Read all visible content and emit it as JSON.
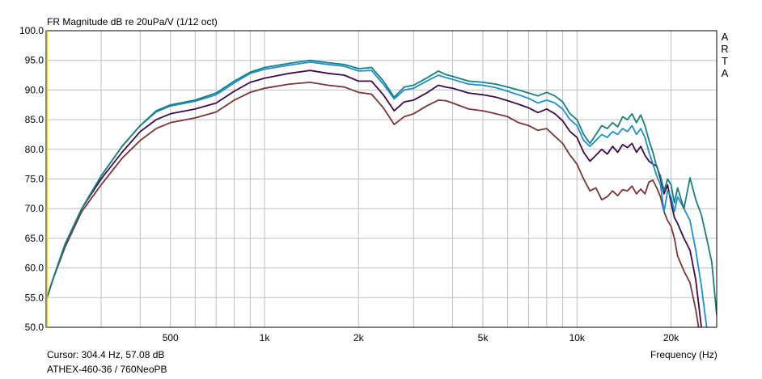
{
  "chart_data": {
    "type": "line",
    "title": "FR Magnitude dB re 20uPa/V (1/12 oct)",
    "xlabel": "Frequency (Hz)",
    "ylabel": "",
    "xscale": "log",
    "xlim": [
      200,
      28000
    ],
    "ylim": [
      50,
      100
    ],
    "grid": true,
    "y_ticks": [
      "100.0",
      "95.0",
      "90.0",
      "85.0",
      "80.0",
      "75.0",
      "70.0",
      "65.0",
      "60.0",
      "55.0",
      "50.0"
    ],
    "x_ticks": [
      {
        "value": 500,
        "label": "500"
      },
      {
        "value": 1000,
        "label": "1k"
      },
      {
        "value": 2000,
        "label": "2k"
      },
      {
        "value": 5000,
        "label": "5k"
      },
      {
        "value": 10000,
        "label": "10k"
      },
      {
        "value": 20000,
        "label": "20k"
      }
    ],
    "series": [
      {
        "color": "#1a7f7a",
        "x": [
          200,
          210,
          230,
          260,
          300,
          350,
          400,
          450,
          500,
          600,
          700,
          800,
          900,
          1000,
          1200,
          1400,
          1600,
          1800,
          2000,
          2200,
          2400,
          2600,
          2800,
          3000,
          3300,
          3600,
          3800,
          4000,
          4500,
          5000,
          5500,
          6000,
          6500,
          7000,
          7500,
          8000,
          8500,
          9000,
          9500,
          10000,
          10500,
          11000,
          11500,
          12000,
          12500,
          13000,
          13500,
          14000,
          14500,
          15000,
          15500,
          16000,
          16500,
          17000,
          17500,
          18000,
          18500,
          19000,
          19500,
          20000,
          20500,
          21000,
          22000,
          23000,
          24000,
          25000,
          26000,
          27000,
          28000
        ],
        "y": [
          54.5,
          58,
          64,
          70,
          75.5,
          80.5,
          84,
          86.5,
          87.5,
          88.3,
          89.5,
          91.5,
          93,
          93.8,
          94.5,
          95,
          94.6,
          94.3,
          93.6,
          93.8,
          91.5,
          88.8,
          90.5,
          90.8,
          92,
          93.2,
          92.6,
          92.3,
          91.5,
          91.3,
          91,
          90.5,
          90,
          89.5,
          89,
          89.6,
          89,
          88,
          86,
          85,
          82.5,
          81,
          82.5,
          84,
          83.5,
          84.5,
          83.8,
          85.5,
          85,
          86,
          84.5,
          85.8,
          84,
          81.5,
          79.5,
          77,
          75.5,
          73,
          75,
          74,
          71,
          73.5,
          70,
          75.2,
          71.5,
          69,
          65,
          61,
          52
        ]
      },
      {
        "color": "#1b8fd6",
        "x": [
          200,
          210,
          230,
          260,
          300,
          350,
          400,
          450,
          500,
          600,
          700,
          800,
          900,
          1000,
          1200,
          1400,
          1600,
          1800,
          2000,
          2200,
          2400,
          2600,
          2800,
          3000,
          3300,
          3600,
          3800,
          4000,
          4500,
          5000,
          5500,
          6000,
          6500,
          7000,
          7500,
          8000,
          8500,
          9000,
          9500,
          10000,
          10500,
          11000,
          11500,
          12000,
          12500,
          13000,
          13500,
          14000,
          14500,
          15000,
          15500,
          16000,
          16500,
          17000,
          17500,
          18000,
          18500,
          19000,
          19500,
          20000,
          20500,
          21000,
          22000,
          23000,
          24000,
          25000,
          26000
        ],
        "y": [
          54.5,
          58,
          64,
          70,
          75.5,
          80.5,
          84,
          86.3,
          87.3,
          88.1,
          89.2,
          91.2,
          92.8,
          93.5,
          94.2,
          94.7,
          94.3,
          94,
          93.2,
          93.3,
          91,
          88.5,
          90,
          90.3,
          91.5,
          92.5,
          92.1,
          91.8,
          91,
          90.8,
          90.4,
          89.8,
          89.2,
          88.6,
          87.8,
          88.3,
          87.8,
          86.8,
          85,
          84,
          81.5,
          80.5,
          81.5,
          82.5,
          82,
          83,
          82.5,
          83.5,
          83,
          84,
          82.5,
          83.5,
          82,
          79.5,
          77.5,
          75.5,
          74,
          69.5,
          73,
          72,
          69.5,
          72,
          70,
          68,
          63,
          57,
          50
        ]
      },
      {
        "color": "#3d0a4e",
        "x": [
          200,
          210,
          230,
          260,
          300,
          350,
          400,
          450,
          500,
          600,
          700,
          800,
          900,
          1000,
          1200,
          1400,
          1600,
          1800,
          2000,
          2200,
          2400,
          2600,
          2800,
          3000,
          3300,
          3600,
          3800,
          4000,
          4500,
          5000,
          5500,
          6000,
          6500,
          7000,
          7500,
          8000,
          8500,
          9000,
          9500,
          10000,
          10500,
          11000,
          11500,
          12000,
          12500,
          13000,
          13500,
          14000,
          14500,
          15000,
          15500,
          16000,
          16500,
          17000,
          17500,
          18000,
          18500,
          19000,
          19500,
          20000,
          20500,
          21000,
          22000,
          23000,
          24000,
          24500,
          25000
        ],
        "y": [
          54.5,
          58,
          64,
          70,
          75,
          79.5,
          83,
          85,
          86,
          86.8,
          87.8,
          89.8,
          91.3,
          92,
          92.8,
          93.3,
          92.8,
          92.5,
          91.5,
          91.5,
          89.2,
          86.5,
          88,
          88.3,
          89.5,
          90.8,
          90.5,
          90.3,
          89.5,
          89.2,
          88.8,
          88.2,
          87.6,
          87,
          86.2,
          86.8,
          86,
          84.8,
          83,
          82,
          79.5,
          78,
          79,
          80,
          79.2,
          80.5,
          79.5,
          80.8,
          80.3,
          81,
          79.5,
          80.5,
          79,
          78,
          77.5,
          77.2,
          75,
          72.5,
          74,
          71,
          68.5,
          67.5,
          65,
          63,
          58,
          54,
          50
        ]
      },
      {
        "color": "#7b3535",
        "x": [
          200,
          210,
          230,
          260,
          300,
          350,
          400,
          450,
          500,
          600,
          700,
          800,
          900,
          1000,
          1200,
          1400,
          1600,
          1800,
          2000,
          2200,
          2400,
          2600,
          2800,
          3000,
          3300,
          3600,
          3800,
          4000,
          4500,
          5000,
          5500,
          6000,
          6500,
          7000,
          7500,
          8000,
          8500,
          9000,
          9500,
          10000,
          10500,
          11000,
          11500,
          12000,
          12500,
          13000,
          13500,
          14000,
          14500,
          15000,
          15500,
          16000,
          16500,
          17000,
          17500,
          18000,
          18500,
          19000,
          19500,
          20000,
          20500,
          21000,
          22000,
          23000,
          24000,
          24500
        ],
        "y": [
          54.5,
          58,
          63.5,
          69.5,
          74,
          78.5,
          81.5,
          83.5,
          84.5,
          85.3,
          86.3,
          88.3,
          89.6,
          90.3,
          91,
          91.3,
          90.8,
          90.5,
          89.6,
          89.3,
          87,
          84.2,
          85.5,
          86,
          87.3,
          88.3,
          88.2,
          87.8,
          86.8,
          86.5,
          86,
          85.5,
          84.5,
          84,
          83.2,
          83.5,
          82.2,
          81,
          79,
          77.5,
          75,
          73,
          73.5,
          71.5,
          72,
          73,
          72.2,
          73.2,
          73,
          73.8,
          72.5,
          73.3,
          72.5,
          74.5,
          74.8,
          73.5,
          72,
          69.5,
          68,
          67,
          65,
          62,
          59.5,
          57.5,
          53,
          50
        ]
      }
    ]
  },
  "title": "FR Magnitude dB re 20uPa/V (1/12 oct)",
  "cursor": "Cursor: 304.4 Hz, 57.08 dB",
  "model": "ATHEX-460-36 / 760NeoPB",
  "xlabel": "Frequency (Hz)",
  "brand": [
    "A",
    "R",
    "T",
    "A"
  ]
}
